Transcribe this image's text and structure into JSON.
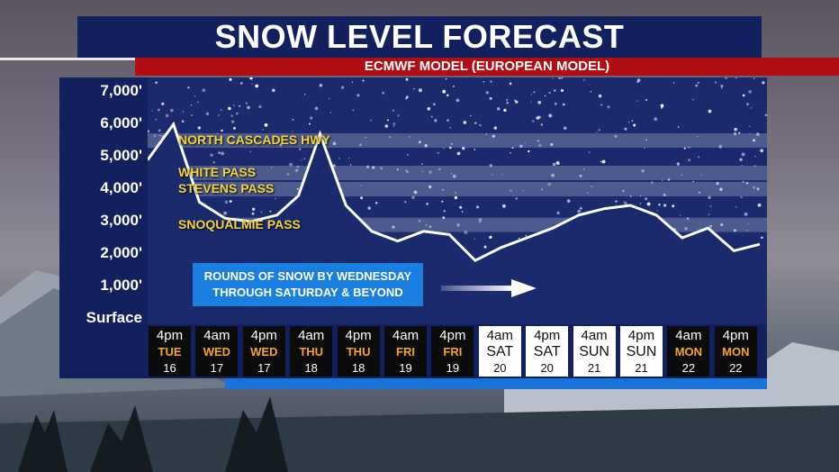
{
  "title": "SNOW LEVEL FORECAST",
  "subtitle": "ECMWF MODEL (EUROPEAN MODEL)",
  "colors": {
    "line": "#ffffff",
    "band": "#8a95b8",
    "highlight": "#f3d43b",
    "note_box": "#1b7fe0",
    "day_label_dark": "#f5a623"
  },
  "note": {
    "line1": "ROUNDS OF SNOW BY WEDNESDAY",
    "line2": "THROUGH SATURDAY & BEYOND"
  },
  "passes": [
    {
      "label": "NORTH CASCADES HWY",
      "elevation": 5500
    },
    {
      "label": "WHITE PASS",
      "elevation": 4500
    },
    {
      "label": "STEVENS PASS",
      "elevation": 4000
    },
    {
      "label": "SNOQUALMIE PASS",
      "elevation": 2900
    }
  ],
  "chart_data": {
    "type": "line",
    "y_ticks": [
      "7,000'",
      "6,000'",
      "5,000'",
      "4,000'",
      "3,000'",
      "2,000'",
      "1,000'",
      "Surface"
    ],
    "ylim": [
      0,
      7000
    ],
    "categories": [
      {
        "time": "4pm",
        "day": "TUE",
        "date": "16",
        "style": "dark"
      },
      {
        "time": "4am",
        "day": "WED",
        "date": "17",
        "style": "dark"
      },
      {
        "time": "4pm",
        "day": "WED",
        "date": "17",
        "style": "dark"
      },
      {
        "time": "4am",
        "day": "THU",
        "date": "18",
        "style": "dark"
      },
      {
        "time": "4pm",
        "day": "THU",
        "date": "18",
        "style": "dark"
      },
      {
        "time": "4am",
        "day": "FRI",
        "date": "19",
        "style": "dark"
      },
      {
        "time": "4pm",
        "day": "FRI",
        "date": "19",
        "style": "dark"
      },
      {
        "time": "4am",
        "day": "SAT",
        "date": "20",
        "style": "light"
      },
      {
        "time": "4pm",
        "day": "SAT",
        "date": "20",
        "style": "light"
      },
      {
        "time": "4am",
        "day": "SUN",
        "date": "21",
        "style": "light"
      },
      {
        "time": "4pm",
        "day": "SUN",
        "date": "21",
        "style": "light"
      },
      {
        "time": "4am",
        "day": "MON",
        "date": "22",
        "style": "dark"
      },
      {
        "time": "4pm",
        "day": "MON",
        "date": "22",
        "style": "dark"
      }
    ],
    "series": [
      {
        "values_detail": [
          [
            0,
            4900
          ],
          [
            0.6,
            6000
          ],
          [
            1.2,
            3600
          ],
          [
            1.8,
            3100
          ],
          [
            2.4,
            3000
          ],
          [
            3.0,
            3200
          ],
          [
            3.5,
            3800
          ],
          [
            4.0,
            5700
          ],
          [
            4.6,
            3500
          ],
          [
            5.2,
            2700
          ],
          [
            5.8,
            2400
          ],
          [
            6.4,
            2700
          ],
          [
            7.0,
            2600
          ],
          [
            7.6,
            1800
          ],
          [
            8.2,
            2200
          ],
          [
            8.8,
            2500
          ],
          [
            9.4,
            2800
          ],
          [
            10.0,
            3200
          ],
          [
            10.6,
            3400
          ],
          [
            11.2,
            3500
          ],
          [
            11.8,
            3200
          ],
          [
            12.4,
            2500
          ],
          [
            13.0,
            2800
          ],
          [
            13.6,
            2100
          ],
          [
            14.2,
            2300
          ]
        ]
      }
    ]
  }
}
